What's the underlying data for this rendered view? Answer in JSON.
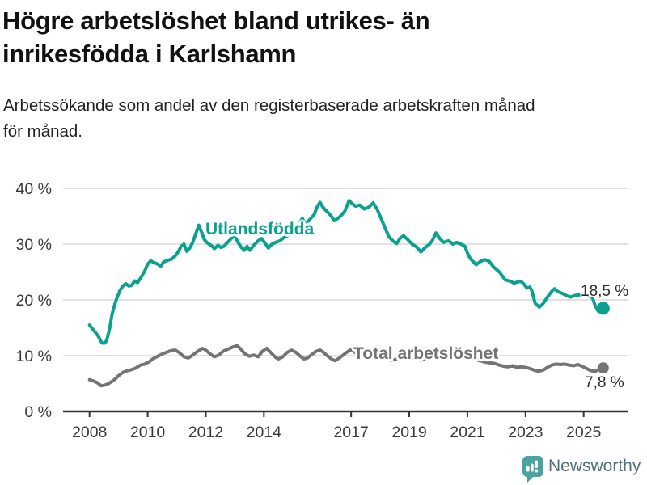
{
  "header": {
    "title_line1": "Högre arbetslöshet bland utrikes- än",
    "title_line2": "inrikesfödda i Karlshamn",
    "subtitle_line1": "Arbetssökande som andel av den registerbaserade arbetskraften månad",
    "subtitle_line2": "för månad."
  },
  "footer": {
    "brand": "Newsworthy"
  },
  "colors": {
    "foreign_line": "#0aa191",
    "total_line": "#747474",
    "grid_line": "#d9d9d9",
    "axis": "#333333",
    "tick_label": "#3a3a3a",
    "value_label": "#2b2b2b",
    "brand_text": "#4d6f7d",
    "brand_icon": "#4aa39e"
  },
  "chart_data": {
    "type": "line",
    "title": "Högre arbetslöshet bland utrikes- än inrikesfödda i Karlshamn",
    "subtitle": "Arbetssökande som andel av den registerbaserade arbetskraften månad för månad.",
    "xlabel": "",
    "ylabel": "",
    "grid": "horizontal",
    "legend_position": "inline-labels",
    "xlim": [
      2007.1,
      2026.5
    ],
    "ylim": [
      0,
      41
    ],
    "x_axis": {
      "ticks": [
        2008,
        2010,
        2012,
        2014,
        2017,
        2019,
        2021,
        2023,
        2025
      ],
      "labels": [
        "2008",
        "2010",
        "2012",
        "2014",
        "2017",
        "2019",
        "2021",
        "2023",
        "2025"
      ]
    },
    "y_axis": {
      "ticks": [
        0,
        10,
        20,
        30,
        40
      ],
      "labels": [
        "0 %",
        "10 %",
        "20 %",
        "30 %",
        "40 %"
      ]
    },
    "series": [
      {
        "name": "Utlandsfödda",
        "color": "#0aa191",
        "end_value": 18.5,
        "end_value_label": "18,5 %",
        "points": [
          [
            2008.0,
            15.5
          ],
          [
            2008.12,
            14.7
          ],
          [
            2008.2,
            14.2
          ],
          [
            2008.3,
            13.5
          ],
          [
            2008.42,
            12.3
          ],
          [
            2008.5,
            12.2
          ],
          [
            2008.58,
            12.6
          ],
          [
            2008.68,
            14.5
          ],
          [
            2008.78,
            17.5
          ],
          [
            2008.88,
            19.4
          ],
          [
            2008.96,
            20.6
          ],
          [
            2009.05,
            21.7
          ],
          [
            2009.15,
            22.5
          ],
          [
            2009.25,
            22.9
          ],
          [
            2009.35,
            22.5
          ],
          [
            2009.45,
            22.6
          ],
          [
            2009.55,
            23.4
          ],
          [
            2009.65,
            23.1
          ],
          [
            2009.78,
            24.1
          ],
          [
            2009.9,
            25.2
          ],
          [
            2010.0,
            26.4
          ],
          [
            2010.1,
            27.0
          ],
          [
            2010.22,
            26.7
          ],
          [
            2010.35,
            26.4
          ],
          [
            2010.45,
            26.0
          ],
          [
            2010.55,
            26.8
          ],
          [
            2010.7,
            27.1
          ],
          [
            2010.82,
            27.3
          ],
          [
            2010.95,
            27.9
          ],
          [
            2011.05,
            28.6
          ],
          [
            2011.15,
            29.6
          ],
          [
            2011.25,
            30.0
          ],
          [
            2011.35,
            28.7
          ],
          [
            2011.45,
            29.3
          ],
          [
            2011.55,
            30.3
          ],
          [
            2011.65,
            31.8
          ],
          [
            2011.76,
            33.4
          ],
          [
            2011.85,
            32.2
          ],
          [
            2011.95,
            30.8
          ],
          [
            2012.05,
            30.2
          ],
          [
            2012.18,
            29.8
          ],
          [
            2012.3,
            29.2
          ],
          [
            2012.42,
            29.8
          ],
          [
            2012.52,
            29.4
          ],
          [
            2012.62,
            29.6
          ],
          [
            2012.75,
            30.3
          ],
          [
            2012.9,
            31.1
          ],
          [
            2013.0,
            31.4
          ],
          [
            2013.1,
            30.4
          ],
          [
            2013.22,
            29.4
          ],
          [
            2013.32,
            28.9
          ],
          [
            2013.42,
            29.6
          ],
          [
            2013.52,
            28.9
          ],
          [
            2013.65,
            29.8
          ],
          [
            2013.8,
            30.6
          ],
          [
            2013.92,
            31.0
          ],
          [
            2014.05,
            30.1
          ],
          [
            2014.15,
            29.3
          ],
          [
            2014.28,
            30.0
          ],
          [
            2014.4,
            30.3
          ],
          [
            2014.55,
            30.6
          ],
          [
            2014.7,
            31.2
          ],
          [
            2014.85,
            31.6
          ],
          [
            2015.0,
            32.2
          ],
          [
            2015.12,
            32.8
          ],
          [
            2015.25,
            34.0
          ],
          [
            2015.32,
            34.6
          ],
          [
            2015.4,
            33.8
          ],
          [
            2015.5,
            33.9
          ],
          [
            2015.62,
            34.7
          ],
          [
            2015.72,
            35.2
          ],
          [
            2015.82,
            36.6
          ],
          [
            2015.93,
            37.5
          ],
          [
            2016.02,
            36.7
          ],
          [
            2016.12,
            36.1
          ],
          [
            2016.22,
            35.6
          ],
          [
            2016.32,
            35.0
          ],
          [
            2016.42,
            34.2
          ],
          [
            2016.52,
            34.5
          ],
          [
            2016.65,
            35.1
          ],
          [
            2016.78,
            35.9
          ],
          [
            2016.93,
            37.8
          ],
          [
            2017.03,
            37.3
          ],
          [
            2017.15,
            36.8
          ],
          [
            2017.3,
            37.0
          ],
          [
            2017.45,
            36.3
          ],
          [
            2017.6,
            36.6
          ],
          [
            2017.76,
            37.4
          ],
          [
            2017.9,
            36.2
          ],
          [
            2018.03,
            34.6
          ],
          [
            2018.17,
            32.9
          ],
          [
            2018.3,
            31.3
          ],
          [
            2018.45,
            30.5
          ],
          [
            2018.57,
            30.1
          ],
          [
            2018.68,
            31.0
          ],
          [
            2018.8,
            31.5
          ],
          [
            2018.95,
            30.8
          ],
          [
            2019.1,
            30.0
          ],
          [
            2019.25,
            29.5
          ],
          [
            2019.4,
            28.6
          ],
          [
            2019.55,
            29.4
          ],
          [
            2019.7,
            30.0
          ],
          [
            2019.8,
            30.7
          ],
          [
            2019.92,
            32.0
          ],
          [
            2020.05,
            31.0
          ],
          [
            2020.18,
            30.3
          ],
          [
            2020.35,
            30.6
          ],
          [
            2020.5,
            30.0
          ],
          [
            2020.62,
            30.3
          ],
          [
            2020.78,
            30.0
          ],
          [
            2020.92,
            29.6
          ],
          [
            2021.0,
            28.4
          ],
          [
            2021.1,
            27.4
          ],
          [
            2021.3,
            26.3
          ],
          [
            2021.45,
            26.9
          ],
          [
            2021.6,
            27.2
          ],
          [
            2021.75,
            26.9
          ],
          [
            2021.9,
            25.9
          ],
          [
            2022.1,
            25.0
          ],
          [
            2022.3,
            23.6
          ],
          [
            2022.5,
            23.3
          ],
          [
            2022.6,
            23.0
          ],
          [
            2022.72,
            23.2
          ],
          [
            2022.85,
            23.3
          ],
          [
            2022.95,
            22.8
          ],
          [
            2023.05,
            22.1
          ],
          [
            2023.15,
            22.3
          ],
          [
            2023.22,
            21.6
          ],
          [
            2023.33,
            19.4
          ],
          [
            2023.47,
            18.7
          ],
          [
            2023.6,
            19.3
          ],
          [
            2023.74,
            20.4
          ],
          [
            2023.9,
            21.5
          ],
          [
            2024.0,
            22.0
          ],
          [
            2024.1,
            21.5
          ],
          [
            2024.25,
            21.2
          ],
          [
            2024.4,
            20.8
          ],
          [
            2024.55,
            20.5
          ],
          [
            2024.7,
            20.8
          ],
          [
            2024.85,
            20.9
          ],
          [
            2025.0,
            21.1
          ],
          [
            2025.15,
            20.8
          ],
          [
            2025.3,
            20.4
          ],
          [
            2025.4,
            18.9
          ],
          [
            2025.5,
            18.0
          ],
          [
            2025.58,
            17.9
          ],
          [
            2025.67,
            18.5
          ]
        ]
      },
      {
        "name": "Total arbetslöshet",
        "color": "#747474",
        "end_value": 7.8,
        "end_value_label": "7,8 %",
        "points": [
          [
            2008.0,
            5.7
          ],
          [
            2008.12,
            5.5
          ],
          [
            2008.25,
            5.2
          ],
          [
            2008.4,
            4.6
          ],
          [
            2008.5,
            4.7
          ],
          [
            2008.62,
            4.9
          ],
          [
            2008.75,
            5.3
          ],
          [
            2008.88,
            5.8
          ],
          [
            2009.0,
            6.4
          ],
          [
            2009.15,
            7.0
          ],
          [
            2009.3,
            7.3
          ],
          [
            2009.45,
            7.5
          ],
          [
            2009.6,
            7.8
          ],
          [
            2009.75,
            8.3
          ],
          [
            2009.9,
            8.5
          ],
          [
            2010.05,
            8.9
          ],
          [
            2010.2,
            9.5
          ],
          [
            2010.35,
            9.9
          ],
          [
            2010.5,
            10.3
          ],
          [
            2010.65,
            10.6
          ],
          [
            2010.8,
            10.9
          ],
          [
            2010.95,
            11.0
          ],
          [
            2011.1,
            10.5
          ],
          [
            2011.25,
            9.8
          ],
          [
            2011.4,
            9.6
          ],
          [
            2011.55,
            10.1
          ],
          [
            2011.7,
            10.7
          ],
          [
            2011.88,
            11.3
          ],
          [
            2012.0,
            11.0
          ],
          [
            2012.15,
            10.3
          ],
          [
            2012.3,
            9.8
          ],
          [
            2012.45,
            10.1
          ],
          [
            2012.6,
            10.8
          ],
          [
            2012.78,
            11.2
          ],
          [
            2012.95,
            11.6
          ],
          [
            2013.08,
            11.8
          ],
          [
            2013.2,
            11.2
          ],
          [
            2013.35,
            10.3
          ],
          [
            2013.5,
            9.9
          ],
          [
            2013.65,
            10.1
          ],
          [
            2013.8,
            9.8
          ],
          [
            2013.95,
            10.8
          ],
          [
            2014.1,
            11.3
          ],
          [
            2014.25,
            10.5
          ],
          [
            2014.4,
            9.7
          ],
          [
            2014.5,
            9.4
          ],
          [
            2014.65,
            9.8
          ],
          [
            2014.8,
            10.6
          ],
          [
            2014.95,
            11.0
          ],
          [
            2015.1,
            10.6
          ],
          [
            2015.25,
            9.9
          ],
          [
            2015.38,
            9.4
          ],
          [
            2015.5,
            9.6
          ],
          [
            2015.65,
            10.2
          ],
          [
            2015.8,
            10.8
          ],
          [
            2015.93,
            11.0
          ],
          [
            2016.05,
            10.6
          ],
          [
            2016.2,
            9.9
          ],
          [
            2016.35,
            9.3
          ],
          [
            2016.45,
            9.1
          ],
          [
            2016.6,
            9.6
          ],
          [
            2016.75,
            10.2
          ],
          [
            2016.9,
            10.8
          ],
          [
            2017.0,
            11.1
          ],
          [
            2017.15,
            10.5
          ],
          [
            2017.3,
            9.9
          ],
          [
            2017.45,
            9.6
          ],
          [
            2017.6,
            9.8
          ],
          [
            2017.75,
            10.1
          ],
          [
            2017.9,
            10.4
          ],
          [
            2018.05,
            10.2
          ],
          [
            2018.2,
            9.7
          ],
          [
            2018.35,
            9.2
          ],
          [
            2018.5,
            9.3
          ],
          [
            2018.65,
            9.6
          ],
          [
            2018.8,
            9.9
          ],
          [
            2018.95,
            10.0
          ],
          [
            2019.1,
            9.7
          ],
          [
            2019.25,
            9.4
          ],
          [
            2019.4,
            9.2
          ],
          [
            2019.55,
            9.4
          ],
          [
            2019.7,
            9.7
          ],
          [
            2019.85,
            9.9
          ],
          [
            2020.0,
            10.1
          ],
          [
            2020.15,
            10.6
          ],
          [
            2020.3,
            11.0
          ],
          [
            2020.45,
            10.8
          ],
          [
            2020.6,
            10.5
          ],
          [
            2020.75,
            10.4
          ],
          [
            2020.9,
            10.3
          ],
          [
            2021.05,
            10.0
          ],
          [
            2021.2,
            9.6
          ],
          [
            2021.35,
            9.2
          ],
          [
            2021.5,
            9.0
          ],
          [
            2021.65,
            8.8
          ],
          [
            2021.8,
            8.7
          ],
          [
            2021.95,
            8.6
          ],
          [
            2022.1,
            8.3
          ],
          [
            2022.25,
            8.1
          ],
          [
            2022.4,
            8.0
          ],
          [
            2022.55,
            8.2
          ],
          [
            2022.7,
            7.9
          ],
          [
            2022.85,
            8.0
          ],
          [
            2023.0,
            7.9
          ],
          [
            2023.15,
            7.7
          ],
          [
            2023.3,
            7.4
          ],
          [
            2023.45,
            7.2
          ],
          [
            2023.6,
            7.4
          ],
          [
            2023.75,
            7.9
          ],
          [
            2023.9,
            8.3
          ],
          [
            2024.05,
            8.5
          ],
          [
            2024.2,
            8.4
          ],
          [
            2024.35,
            8.5
          ],
          [
            2024.5,
            8.3
          ],
          [
            2024.65,
            8.2
          ],
          [
            2024.8,
            8.4
          ],
          [
            2024.95,
            8.1
          ],
          [
            2025.1,
            7.7
          ],
          [
            2025.25,
            7.3
          ],
          [
            2025.4,
            7.2
          ],
          [
            2025.55,
            7.6
          ],
          [
            2025.67,
            7.8
          ]
        ]
      }
    ]
  }
}
